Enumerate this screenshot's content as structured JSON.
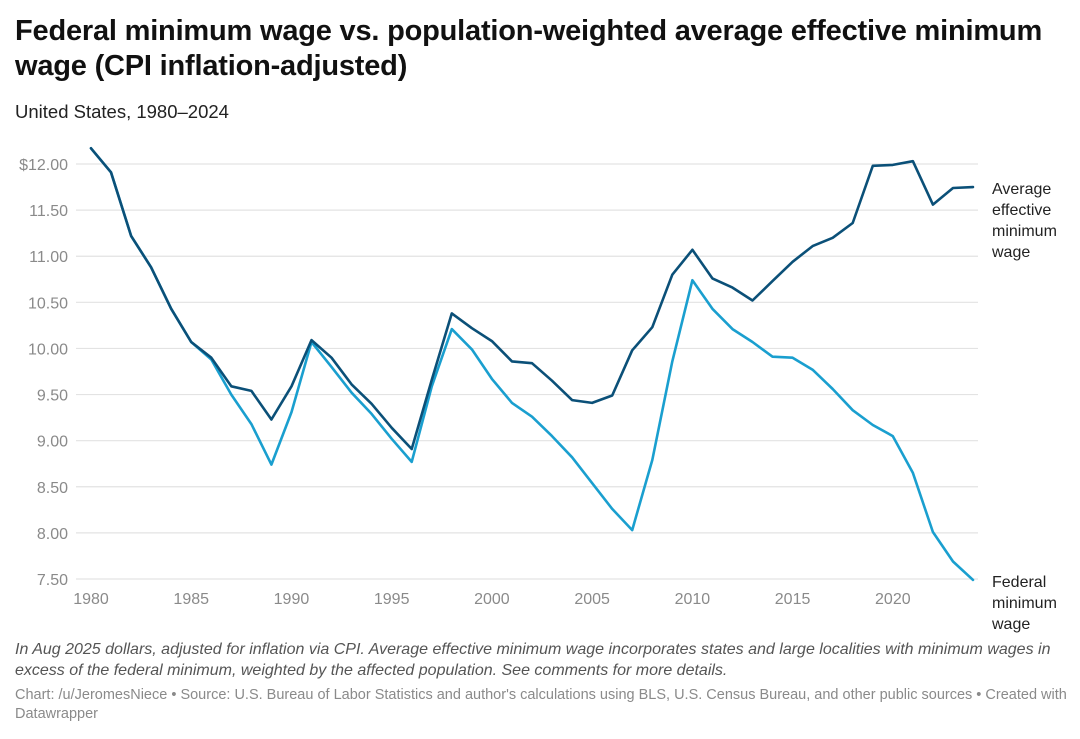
{
  "header": {
    "title": "Federal minimum wage vs. population-weighted average effective minimum wage (CPI inflation-adjusted)",
    "subtitle": "United States, 1980–2024"
  },
  "footer": {
    "notes": "In Aug 2025 dollars, adjusted for inflation via CPI. Average effective minimum wage incorporates states and large localities with minimum wages in excess of the federal minimum, weighted by the affected population. See comments for more details.",
    "credits": "Chart: /u/JeromesNiece • Source: U.S. Bureau of Labor Statistics and author's calculations using BLS, U.S. Census Bureau, and other public sources • Created with Datawrapper"
  },
  "chart_data": {
    "type": "line",
    "title": "Federal minimum wage vs. population-weighted average effective minimum wage (CPI inflation-adjusted)",
    "subtitle": "United States, 1980–2024",
    "xlabel": "",
    "ylabel": "",
    "xlim": [
      1980,
      2024
    ],
    "ylim": [
      7.5,
      12.0
    ],
    "grid": true,
    "legend": "direct-labels-right",
    "x_ticks": [
      1980,
      1985,
      1990,
      1995,
      2000,
      2005,
      2010,
      2015,
      2020
    ],
    "x_tick_labels": [
      "1980",
      "1985",
      "1990",
      "1995",
      "2000",
      "2005",
      "2010",
      "2015",
      "2020"
    ],
    "y_ticks": [
      7.5,
      8.0,
      8.5,
      9.0,
      9.5,
      10.0,
      10.5,
      11.0,
      11.5,
      12.0
    ],
    "y_tick_labels": [
      "7.50",
      "8.00",
      "8.50",
      "9.00",
      "9.50",
      "10.00",
      "10.50",
      "11.00",
      "11.50",
      "$12.00"
    ],
    "x": [
      1980,
      1981,
      1982,
      1983,
      1984,
      1985,
      1986,
      1987,
      1988,
      1989,
      1990,
      1991,
      1992,
      1993,
      1994,
      1995,
      1996,
      1997,
      1998,
      1999,
      2000,
      2001,
      2002,
      2003,
      2004,
      2005,
      2006,
      2007,
      2008,
      2009,
      2010,
      2011,
      2012,
      2013,
      2014,
      2015,
      2016,
      2017,
      2018,
      2019,
      2020,
      2021,
      2022,
      2023,
      2024
    ],
    "series": [
      {
        "name": "Average effective minimum wage",
        "label_lines": [
          "Average",
          "effective",
          "minimum",
          "wage"
        ],
        "color": "#0b5078",
        "values": [
          12.17,
          11.91,
          11.22,
          10.88,
          10.43,
          10.07,
          9.9,
          9.59,
          9.54,
          9.23,
          9.59,
          10.09,
          9.9,
          9.61,
          9.4,
          9.14,
          8.91,
          9.66,
          10.38,
          10.22,
          10.08,
          9.86,
          9.84,
          9.65,
          9.44,
          9.41,
          9.49,
          9.98,
          10.23,
          10.8,
          11.07,
          10.76,
          10.66,
          10.52,
          10.73,
          10.94,
          11.11,
          11.2,
          11.36,
          11.98,
          11.99,
          12.03,
          11.56,
          11.74,
          11.75
        ]
      },
      {
        "name": "Federal minimum wage",
        "label_lines": [
          "Federal",
          "minimum",
          "wage"
        ],
        "color": "#1a9fcf",
        "values": [
          12.17,
          11.91,
          11.22,
          10.88,
          10.43,
          10.07,
          9.88,
          9.5,
          9.18,
          8.74,
          9.31,
          10.07,
          9.8,
          9.52,
          9.29,
          9.02,
          8.77,
          9.59,
          10.21,
          9.99,
          9.67,
          9.41,
          9.26,
          9.05,
          8.82,
          8.54,
          8.26,
          8.03,
          8.79,
          9.86,
          10.74,
          10.43,
          10.21,
          10.07,
          9.91,
          9.9,
          9.77,
          9.56,
          9.33,
          9.17,
          9.05,
          8.65,
          8.01,
          7.69,
          7.49
        ]
      }
    ]
  }
}
